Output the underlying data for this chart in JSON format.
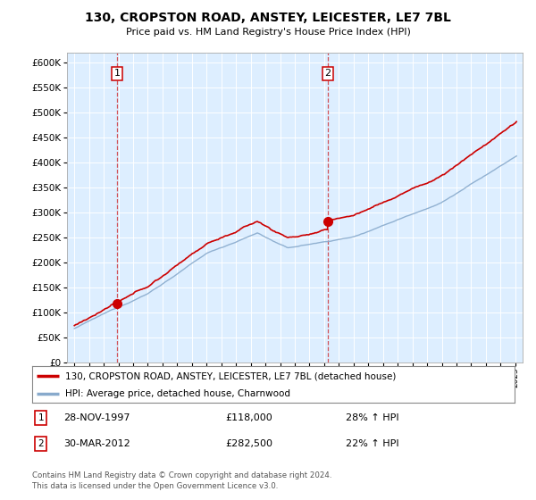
{
  "title": "130, CROPSTON ROAD, ANSTEY, LEICESTER, LE7 7BL",
  "subtitle": "Price paid vs. HM Land Registry's House Price Index (HPI)",
  "legend_line1": "130, CROPSTON ROAD, ANSTEY, LEICESTER, LE7 7BL (detached house)",
  "legend_line2": "HPI: Average price, detached house, Charnwood",
  "transaction1_date": "28-NOV-1997",
  "transaction1_price": "£118,000",
  "transaction1_hpi": "28% ↑ HPI",
  "transaction2_date": "30-MAR-2012",
  "transaction2_price": "£282,500",
  "transaction2_hpi": "22% ↑ HPI",
  "footer": "Contains HM Land Registry data © Crown copyright and database right 2024.\nThis data is licensed under the Open Government Licence v3.0.",
  "sale1_year": 1997.91,
  "sale1_price": 118000,
  "sale2_year": 2012.24,
  "sale2_price": 282500,
  "red_color": "#cc0000",
  "blue_color": "#88aacc",
  "background_color": "#ddeeff",
  "ylim_min": 0,
  "ylim_max": 620000,
  "xlim_min": 1994.5,
  "xlim_max": 2025.5
}
